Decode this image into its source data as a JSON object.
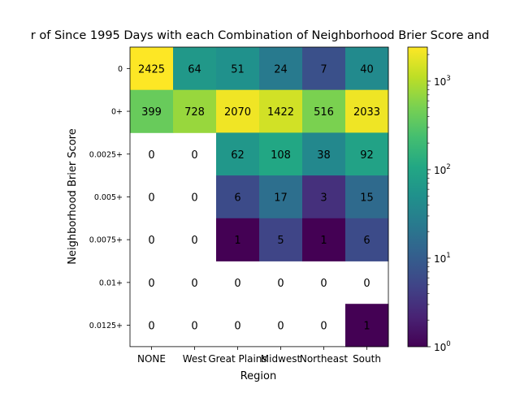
{
  "chart_data": {
    "type": "heatmap",
    "title": "r of Since 1995 Days with each Combination of Neighborhood Brier Score and",
    "xlabel": "Region",
    "ylabel": "Neighborhood Brier Score",
    "x_categories": [
      "NONE",
      "West",
      "Great Plains",
      "Midwest",
      "Northeast",
      "South"
    ],
    "y_categories": [
      "0",
      "0+",
      "0.0025+",
      "0.005+",
      "0.0075+",
      "0.01+",
      "0.0125+"
    ],
    "values": [
      [
        2425,
        64,
        51,
        24,
        7,
        40
      ],
      [
        399,
        728,
        2070,
        1422,
        516,
        2033
      ],
      [
        0,
        0,
        62,
        108,
        38,
        92
      ],
      [
        0,
        0,
        6,
        17,
        3,
        15
      ],
      [
        0,
        0,
        1,
        5,
        1,
        6
      ],
      [
        0,
        0,
        0,
        0,
        0,
        0
      ],
      [
        0,
        0,
        0,
        0,
        0,
        1
      ]
    ],
    "color_scale": "log",
    "colormap": "viridis",
    "zero_cells": "blank",
    "colorbar": {
      "range": [
        1,
        2425
      ],
      "ticks": [
        {
          "value": 1,
          "base": "10",
          "exp": "0"
        },
        {
          "value": 10,
          "base": "10",
          "exp": "1"
        },
        {
          "value": 100,
          "base": "10",
          "exp": "2"
        },
        {
          "value": 1000,
          "base": "10",
          "exp": "3"
        }
      ]
    },
    "grid": false
  }
}
